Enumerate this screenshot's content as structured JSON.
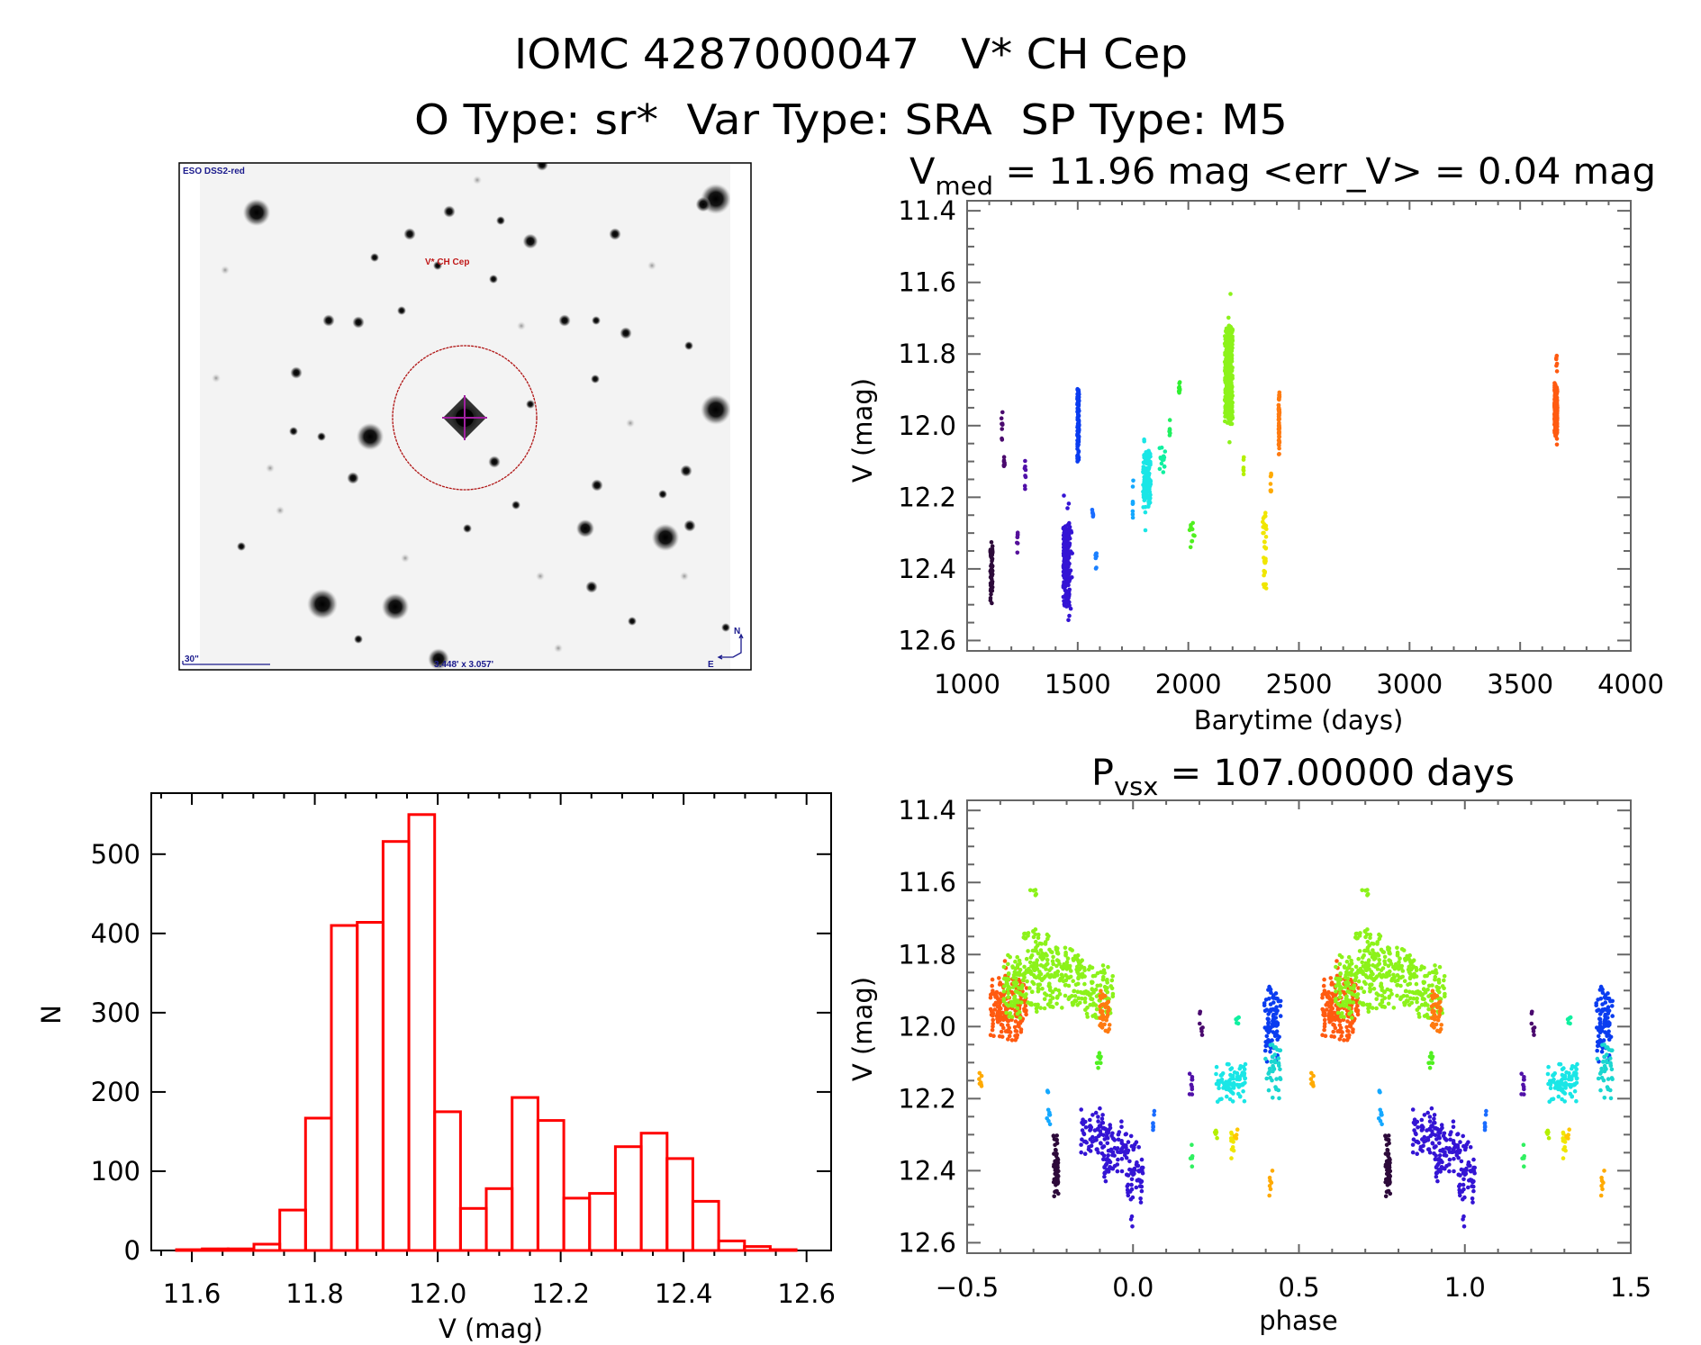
{
  "header": {
    "line1": "IOMC 4287000047   V* CH Cep",
    "line2": "O Type: sr*  Var Type: SRA  SP Type: M5"
  },
  "finder_chart": {
    "survey_label": "ESO DSS2-red",
    "target_label": "V* CH Cep",
    "scale_bar_label": "30\"",
    "fov_label": "3.448' x 3.057'",
    "north_label": "N",
    "east_label": "E",
    "colors": {
      "annotation": "#1a1a8c",
      "target_label": "#c01818",
      "aperture_circle": "#b01414",
      "crosshair": "#a020a0",
      "sky": "#f3f3f3"
    }
  },
  "chart_data": [
    {
      "id": "light-curve",
      "type": "scatter",
      "title": {
        "main": "V",
        "sub": "med",
        "rest": " = 11.96 mag <err_V> = 0.04 mag"
      },
      "xlabel": "Barytime (days)",
      "ylabel": "V (mag)",
      "xlim": [
        1000,
        4000
      ],
      "ylim": [
        11.372,
        12.629
      ],
      "y_inverted": true,
      "grid": false,
      "x_minor_step": 100,
      "y_minor_step": 0.05,
      "x_ticks": [
        {
          "value": 1000,
          "label": "1000"
        },
        {
          "value": 1500,
          "label": "1500"
        },
        {
          "value": 2000,
          "label": "2000"
        },
        {
          "value": 2500,
          "label": "2500"
        },
        {
          "value": 3000,
          "label": "3000"
        },
        {
          "value": 3500,
          "label": "3500"
        },
        {
          "value": 4000,
          "label": "4000"
        }
      ],
      "y_ticks": [
        {
          "value": 11.4,
          "label": "11.4"
        },
        {
          "value": 11.6,
          "label": "11.6"
        },
        {
          "value": 11.8,
          "label": "11.8"
        },
        {
          "value": 12.0,
          "label": "12.0"
        },
        {
          "value": 12.2,
          "label": "12.2"
        },
        {
          "value": 12.4,
          "label": "12.4"
        },
        {
          "value": 12.6,
          "label": "12.6"
        }
      ],
      "clusters": [
        {
          "t": [
            1105,
            1115
          ],
          "mag": [
            12.31,
            12.5
          ],
          "n": 60,
          "color": "#2d0a3a"
        },
        {
          "t": [
            1155,
            1160
          ],
          "mag": [
            11.95,
            12.04
          ],
          "n": 8,
          "color": "#4a0a6e"
        },
        {
          "t": [
            1165,
            1170
          ],
          "mag": [
            12.07,
            12.13
          ],
          "n": 7,
          "color": "#4a0a6e"
        },
        {
          "t": [
            1225,
            1230
          ],
          "mag": [
            12.28,
            12.36
          ],
          "n": 8,
          "color": "#55109a"
        },
        {
          "t": [
            1260,
            1265
          ],
          "mag": [
            12.09,
            12.18
          ],
          "n": 8,
          "color": "#5010a8"
        },
        {
          "t": [
            1435,
            1465
          ],
          "mag": [
            12.27,
            12.51
          ],
          "n": 160,
          "color": "#3414d4"
        },
        {
          "t": [
            1435,
            1475
          ],
          "mag": [
            12.12,
            12.56
          ],
          "n": 30,
          "color": "#3414d4"
        },
        {
          "t": [
            1498,
            1506
          ],
          "mag": [
            11.885,
            12.105
          ],
          "n": 110,
          "color": "#0a3cf0"
        },
        {
          "t": [
            1565,
            1570
          ],
          "mag": [
            12.23,
            12.26
          ],
          "n": 6,
          "color": "#1a6cff"
        },
        {
          "t": [
            1580,
            1585
          ],
          "mag": [
            12.32,
            12.41
          ],
          "n": 8,
          "color": "#1a80ff"
        },
        {
          "t": [
            1748,
            1752
          ],
          "mag": [
            12.14,
            12.28
          ],
          "n": 8,
          "color": "#14a8ff"
        },
        {
          "t": [
            1795,
            1830
          ],
          "mag": [
            12.06,
            12.23
          ],
          "n": 120,
          "color": "#1ae6e6"
        },
        {
          "t": [
            1800,
            1810
          ],
          "mag": [
            12.01,
            12.32
          ],
          "n": 12,
          "color": "#1ae6e6"
        },
        {
          "t": [
            1868,
            1895
          ],
          "mag": [
            12.05,
            12.14
          ],
          "n": 14,
          "color": "#10f0a0"
        },
        {
          "t": [
            1914,
            1918
          ],
          "mag": [
            11.97,
            12.03
          ],
          "n": 6,
          "color": "#20f060"
        },
        {
          "t": [
            1957,
            1962
          ],
          "mag": [
            11.86,
            11.92
          ],
          "n": 12,
          "color": "#30f030"
        },
        {
          "t": [
            2005,
            2028
          ],
          "mag": [
            12.26,
            12.35
          ],
          "n": 12,
          "color": "#50f020"
        },
        {
          "t": [
            2165,
            2200
          ],
          "mag": [
            11.72,
            12.0
          ],
          "n": 400,
          "color": "#8cf21a"
        },
        {
          "t": [
            2170,
            2195
          ],
          "mag": [
            11.58,
            12.05
          ],
          "n": 20,
          "color": "#8cf21a"
        },
        {
          "t": [
            2248,
            2252
          ],
          "mag": [
            12.06,
            12.17
          ],
          "n": 6,
          "color": "#b4f000"
        },
        {
          "t": [
            2336,
            2356
          ],
          "mag": [
            12.24,
            12.46
          ],
          "n": 35,
          "color": "#f0e600"
        },
        {
          "t": [
            2371,
            2375
          ],
          "mag": [
            12.12,
            12.2
          ],
          "n": 8,
          "color": "#ffaa00"
        },
        {
          "t": [
            2408,
            2412
          ],
          "mag": [
            11.9,
            12.08
          ],
          "n": 60,
          "color": "#ff7a10"
        },
        {
          "t": [
            3655,
            3668
          ],
          "mag": [
            11.88,
            12.03
          ],
          "n": 220,
          "color": "#ff5a10"
        },
        {
          "t": [
            3655,
            3668
          ],
          "mag": [
            11.78,
            12.07
          ],
          "n": 20,
          "color": "#ff5a10"
        }
      ]
    },
    {
      "id": "phase-curve",
      "type": "scatter",
      "title": {
        "main": "P",
        "sub": "vsx",
        "rest": " = 107.00000 days"
      },
      "period_days": 107.0,
      "xlabel": "phase",
      "ylabel": "V (mag)",
      "xlim": [
        -0.5,
        1.5
      ],
      "ylim": [
        11.372,
        12.629
      ],
      "y_inverted": true,
      "grid": false,
      "phase_repeat_offset": 1.0,
      "x_minor_step": 0.1,
      "y_minor_step": 0.05,
      "x_ticks": [
        {
          "value": -0.5,
          "label": "−0.5"
        },
        {
          "value": 0.0,
          "label": "0.0"
        },
        {
          "value": 0.5,
          "label": "0.5"
        },
        {
          "value": 1.0,
          "label": "1.0"
        },
        {
          "value": 1.5,
          "label": "1.5"
        }
      ],
      "y_ticks": [
        {
          "value": 11.4,
          "label": "11.4"
        },
        {
          "value": 11.6,
          "label": "11.6"
        },
        {
          "value": 11.8,
          "label": "11.8"
        },
        {
          "value": 12.0,
          "label": "12.0"
        },
        {
          "value": 12.2,
          "label": "12.2"
        },
        {
          "value": 12.4,
          "label": "12.4"
        },
        {
          "value": 12.6,
          "label": "12.6"
        }
      ],
      "clusters": [
        {
          "phase": [
            -0.43,
            -0.32
          ],
          "mag": [
            11.86,
            12.04
          ],
          "n": 170,
          "color": "#ff5a10"
        },
        {
          "phase": [
            -0.43,
            -0.32
          ],
          "mag": [
            11.78,
            12.08
          ],
          "n": 20,
          "color": "#ff5a10"
        },
        {
          "phase": [
            -0.39,
            -0.33
          ],
          "mag": [
            11.8,
            11.98
          ],
          "n": 80,
          "color": "#8cf21a"
        },
        {
          "phase": [
            -0.33,
            -0.25
          ],
          "mag": [
            11.73,
            11.96
          ],
          "n": 130,
          "color": "#8cf21a"
        },
        {
          "phase": [
            -0.25,
            -0.15
          ],
          "mag": [
            11.78,
            11.95
          ],
          "n": 120,
          "color": "#8cf21a"
        },
        {
          "phase": [
            -0.15,
            -0.06
          ],
          "mag": [
            11.83,
            11.98
          ],
          "n": 90,
          "color": "#8cf21a"
        },
        {
          "phase": [
            -0.31,
            -0.29
          ],
          "mag": [
            11.58,
            11.66
          ],
          "n": 5,
          "color": "#8cf21a"
        },
        {
          "phase": [
            -0.1,
            -0.07
          ],
          "mag": [
            11.9,
            12.02
          ],
          "n": 40,
          "color": "#ff7a10"
        },
        {
          "phase": [
            -0.465,
            -0.455
          ],
          "mag": [
            12.12,
            12.2
          ],
          "n": 7,
          "color": "#ffaa00"
        },
        {
          "phase": [
            -0.26,
            -0.25
          ],
          "mag": [
            12.15,
            12.3
          ],
          "n": 10,
          "color": "#14a8ff"
        },
        {
          "phase": [
            -0.24,
            -0.225
          ],
          "mag": [
            12.3,
            12.48
          ],
          "n": 60,
          "color": "#2d0a3a"
        },
        {
          "phase": [
            -0.11,
            -0.095
          ],
          "mag": [
            12.05,
            12.13
          ],
          "n": 8,
          "color": "#50f020"
        },
        {
          "phase": [
            -0.16,
            -0.09
          ],
          "mag": [
            12.22,
            12.36
          ],
          "n": 60,
          "color": "#3414d4"
        },
        {
          "phase": [
            -0.09,
            -0.02
          ],
          "mag": [
            12.26,
            12.43
          ],
          "n": 80,
          "color": "#3414d4"
        },
        {
          "phase": [
            -0.02,
            0.03
          ],
          "mag": [
            12.3,
            12.5
          ],
          "n": 60,
          "color": "#3414d4"
        },
        {
          "phase": [
            -0.01,
            0.0
          ],
          "mag": [
            12.5,
            12.56
          ],
          "n": 3,
          "color": "#3414d4"
        },
        {
          "phase": [
            0.06,
            0.07
          ],
          "mag": [
            12.22,
            12.3
          ],
          "n": 8,
          "color": "#1a6cff"
        },
        {
          "phase": [
            0.17,
            0.18
          ],
          "mag": [
            12.12,
            12.2
          ],
          "n": 10,
          "color": "#5010a8"
        },
        {
          "phase": [
            0.2,
            0.21
          ],
          "mag": [
            11.95,
            12.03
          ],
          "n": 7,
          "color": "#4a0a6e"
        },
        {
          "phase": [
            0.17,
            0.18
          ],
          "mag": [
            12.32,
            12.4
          ],
          "n": 5,
          "color": "#30f060"
        },
        {
          "phase": [
            0.25,
            0.34
          ],
          "mag": [
            12.1,
            12.21
          ],
          "n": 90,
          "color": "#1ae6e6"
        },
        {
          "phase": [
            0.245,
            0.255
          ],
          "mag": [
            12.27,
            12.31
          ],
          "n": 5,
          "color": "#b4f000"
        },
        {
          "phase": [
            0.295,
            0.305
          ],
          "mag": [
            12.27,
            12.38
          ],
          "n": 10,
          "color": "#f0e600"
        },
        {
          "phase": [
            0.31,
            0.32
          ],
          "mag": [
            11.97,
            12.0
          ],
          "n": 6,
          "color": "#10f0a0"
        },
        {
          "phase": [
            0.395,
            0.445
          ],
          "mag": [
            11.88,
            12.1
          ],
          "n": 90,
          "color": "#0a3cf0"
        },
        {
          "phase": [
            0.395,
            0.445
          ],
          "mag": [
            12.05,
            12.2
          ],
          "n": 40,
          "color": "#1ad6d0"
        },
        {
          "phase": [
            0.41,
            0.42
          ],
          "mag": [
            12.4,
            12.47
          ],
          "n": 7,
          "color": "#ffaa00"
        },
        {
          "phase": [
            0.305,
            0.315
          ],
          "mag": [
            12.28,
            12.34
          ],
          "n": 5,
          "color": "#ffc800"
        }
      ]
    },
    {
      "id": "magnitude-histogram",
      "type": "bar",
      "histogram": true,
      "xlabel": "V (mag)",
      "ylabel": "N",
      "xlim": [
        11.534,
        12.64
      ],
      "ylim": [
        0,
        577
      ],
      "grid": false,
      "bar_color": "#ff0000",
      "bin_start": 11.575,
      "bin_width": 0.042,
      "counts": [
        1,
        2,
        2,
        8,
        51,
        167,
        410,
        414,
        516,
        550,
        175,
        53,
        78,
        193,
        164,
        66,
        72,
        131,
        148,
        116,
        62,
        12,
        5,
        1
      ],
      "x_minor_step": 0.05,
      "x_ticks": [
        {
          "value": 11.6,
          "label": "11.6"
        },
        {
          "value": 11.8,
          "label": "11.8"
        },
        {
          "value": 12.0,
          "label": "12.0"
        },
        {
          "value": 12.2,
          "label": "12.2"
        },
        {
          "value": 12.4,
          "label": "12.4"
        },
        {
          "value": 12.6,
          "label": "12.6"
        }
      ],
      "y_ticks": [
        {
          "value": 0,
          "label": "0"
        },
        {
          "value": 100,
          "label": "100"
        },
        {
          "value": 200,
          "label": "200"
        },
        {
          "value": 300,
          "label": "300"
        },
        {
          "value": 400,
          "label": "400"
        },
        {
          "value": 500,
          "label": "500"
        }
      ]
    }
  ]
}
